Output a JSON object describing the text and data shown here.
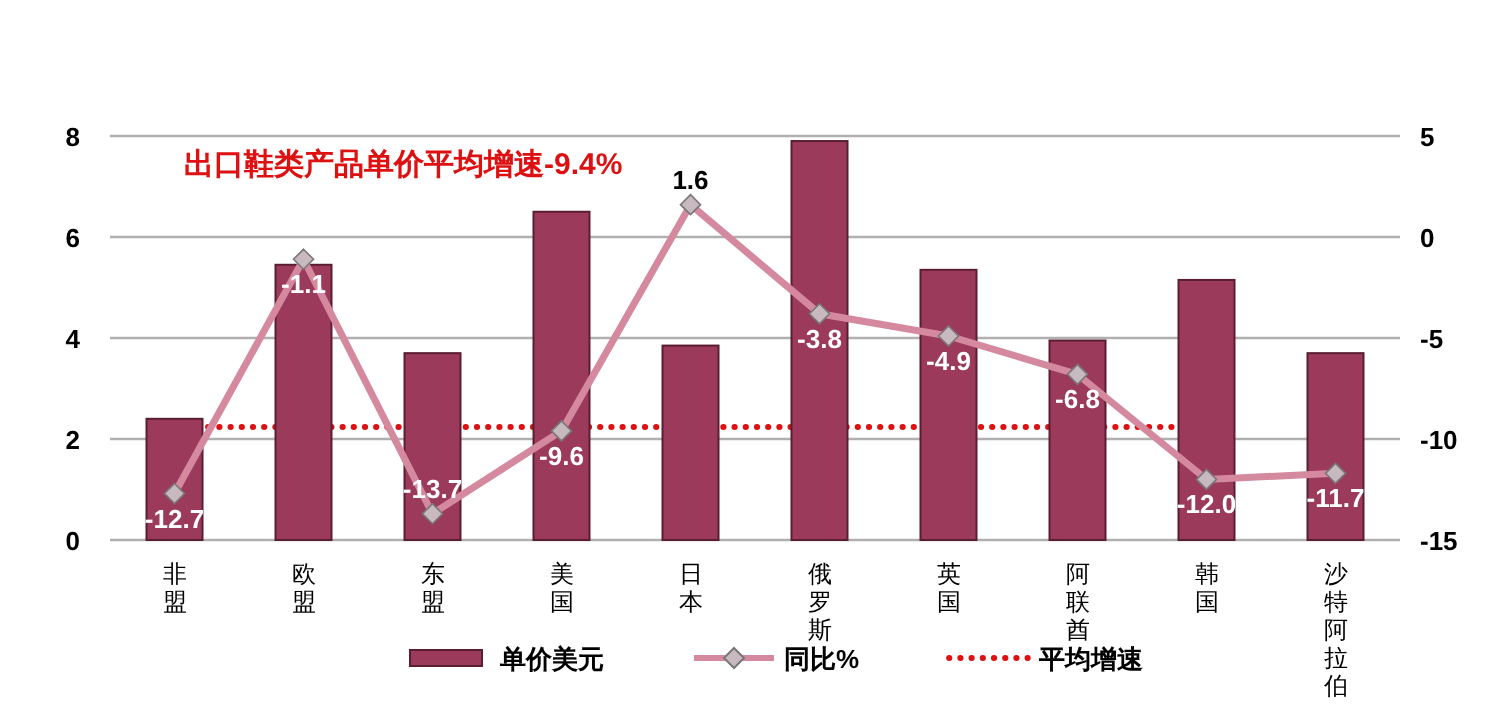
{
  "chart_data": {
    "type": "bar",
    "title": "出口鞋类产品单价平均增速-9.4%",
    "categories": [
      "非盟",
      "欧盟",
      "东盟",
      "美国",
      "日本",
      "俄罗斯",
      "英国",
      "阿联酋",
      "韩国",
      "沙特阿拉伯"
    ],
    "series": [
      {
        "name": "单价美元",
        "color": "#9b3a5a",
        "values": [
          2.4,
          5.45,
          3.7,
          6.5,
          3.85,
          7.9,
          5.35,
          3.95,
          5.15,
          3.7
        ]
      },
      {
        "name": "同比%",
        "type": "line",
        "axis": "y2",
        "color": "#d4899f",
        "marker": "diamond",
        "values": [
          -12.7,
          -1.1,
          -13.7,
          -9.6,
          1.6,
          -3.8,
          -4.9,
          -6.8,
          -12.0,
          -11.7
        ],
        "value_labels": [
          "-12.7",
          "-1.1",
          "-13.7",
          "-9.6",
          "1.6",
          "-3.8",
          "-4.9",
          "-6.8",
          "-12.0",
          "-11.7"
        ]
      }
    ],
    "ylim": [
      0,
      8
    ],
    "yticks": [
      0,
      2,
      4,
      6,
      8
    ],
    "y2lim": [
      -15,
      5
    ],
    "y2ticks": [
      -15,
      -10,
      -5,
      0,
      5
    ],
    "ref_lines": [
      {
        "axis": "y2",
        "value": -9.4,
        "label": "平均增速",
        "color": "#dd1111",
        "line_style": "dotted"
      }
    ],
    "grid": "y",
    "legend": "bottom"
  }
}
